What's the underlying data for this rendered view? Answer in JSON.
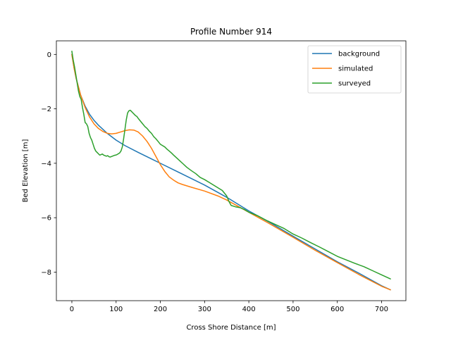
{
  "chart_data": {
    "type": "line",
    "title": "Profile Number 914",
    "xlabel": "Cross Shore Distance [m]",
    "ylabel": "Bed Elevation [m]",
    "xlim": [
      -35,
      755
    ],
    "ylim": [
      -9.05,
      0.5
    ],
    "xticks": [
      0,
      100,
      200,
      300,
      400,
      500,
      600,
      700
    ],
    "yticks": [
      0,
      -2,
      -4,
      -6,
      -8
    ],
    "grid": false,
    "legend_position": "top-right",
    "series": [
      {
        "name": "background",
        "color": "#1f77b4",
        "points": [
          [
            0,
            0
          ],
          [
            5,
            -0.5
          ],
          [
            10,
            -0.9
          ],
          [
            20,
            -1.5
          ],
          [
            30,
            -1.9
          ],
          [
            40,
            -2.2
          ],
          [
            50,
            -2.42
          ],
          [
            60,
            -2.6
          ],
          [
            70,
            -2.75
          ],
          [
            80,
            -2.9
          ],
          [
            100,
            -3.15
          ],
          [
            120,
            -3.35
          ],
          [
            150,
            -3.6
          ],
          [
            180,
            -3.84
          ],
          [
            200,
            -4.0
          ],
          [
            250,
            -4.4
          ],
          [
            300,
            -4.8
          ],
          [
            350,
            -5.25
          ],
          [
            400,
            -5.75
          ],
          [
            450,
            -6.2
          ],
          [
            500,
            -6.68
          ],
          [
            550,
            -7.15
          ],
          [
            600,
            -7.62
          ],
          [
            650,
            -8.05
          ],
          [
            700,
            -8.5
          ],
          [
            720,
            -8.65
          ]
        ]
      },
      {
        "name": "simulated",
        "color": "#ff7f0e",
        "points": [
          [
            0,
            0
          ],
          [
            5,
            -0.5
          ],
          [
            10,
            -0.9
          ],
          [
            20,
            -1.5
          ],
          [
            30,
            -1.95
          ],
          [
            40,
            -2.3
          ],
          [
            50,
            -2.55
          ],
          [
            60,
            -2.72
          ],
          [
            70,
            -2.83
          ],
          [
            80,
            -2.9
          ],
          [
            90,
            -2.92
          ],
          [
            100,
            -2.9
          ],
          [
            110,
            -2.85
          ],
          [
            120,
            -2.8
          ],
          [
            130,
            -2.77
          ],
          [
            140,
            -2.78
          ],
          [
            150,
            -2.85
          ],
          [
            160,
            -3.0
          ],
          [
            170,
            -3.2
          ],
          [
            180,
            -3.45
          ],
          [
            190,
            -3.75
          ],
          [
            200,
            -4.05
          ],
          [
            210,
            -4.3
          ],
          [
            220,
            -4.5
          ],
          [
            230,
            -4.62
          ],
          [
            240,
            -4.72
          ],
          [
            250,
            -4.78
          ],
          [
            270,
            -4.88
          ],
          [
            300,
            -5.02
          ],
          [
            330,
            -5.2
          ],
          [
            350,
            -5.35
          ],
          [
            400,
            -5.8
          ],
          [
            450,
            -6.25
          ],
          [
            500,
            -6.72
          ],
          [
            550,
            -7.2
          ],
          [
            600,
            -7.65
          ],
          [
            650,
            -8.1
          ],
          [
            700,
            -8.52
          ],
          [
            720,
            -8.65
          ]
        ]
      },
      {
        "name": "surveyed",
        "color": "#2ca02c",
        "points": [
          [
            0,
            0.12
          ],
          [
            3,
            -0.2
          ],
          [
            6,
            -0.45
          ],
          [
            9,
            -0.75
          ],
          [
            12,
            -1.05
          ],
          [
            15,
            -1.35
          ],
          [
            18,
            -1.55
          ],
          [
            21,
            -1.65
          ],
          [
            24,
            -1.95
          ],
          [
            27,
            -2.2
          ],
          [
            30,
            -2.5
          ],
          [
            33,
            -2.55
          ],
          [
            36,
            -2.65
          ],
          [
            39,
            -2.9
          ],
          [
            42,
            -3.05
          ],
          [
            45,
            -3.15
          ],
          [
            48,
            -3.3
          ],
          [
            51,
            -3.45
          ],
          [
            54,
            -3.55
          ],
          [
            57,
            -3.6
          ],
          [
            60,
            -3.65
          ],
          [
            63,
            -3.7
          ],
          [
            66,
            -3.68
          ],
          [
            69,
            -3.66
          ],
          [
            72,
            -3.7
          ],
          [
            75,
            -3.72
          ],
          [
            78,
            -3.74
          ],
          [
            81,
            -3.72
          ],
          [
            84,
            -3.76
          ],
          [
            87,
            -3.77
          ],
          [
            90,
            -3.75
          ],
          [
            93,
            -3.73
          ],
          [
            96,
            -3.71
          ],
          [
            99,
            -3.7
          ],
          [
            102,
            -3.68
          ],
          [
            105,
            -3.65
          ],
          [
            108,
            -3.62
          ],
          [
            111,
            -3.55
          ],
          [
            114,
            -3.4
          ],
          [
            117,
            -3.1
          ],
          [
            120,
            -2.75
          ],
          [
            123,
            -2.4
          ],
          [
            126,
            -2.15
          ],
          [
            129,
            -2.07
          ],
          [
            132,
            -2.05
          ],
          [
            135,
            -2.1
          ],
          [
            138,
            -2.15
          ],
          [
            141,
            -2.2
          ],
          [
            144,
            -2.25
          ],
          [
            147,
            -2.28
          ],
          [
            150,
            -2.35
          ],
          [
            155,
            -2.45
          ],
          [
            160,
            -2.55
          ],
          [
            165,
            -2.65
          ],
          [
            170,
            -2.72
          ],
          [
            175,
            -2.82
          ],
          [
            180,
            -2.9
          ],
          [
            185,
            -3.02
          ],
          [
            190,
            -3.1
          ],
          [
            195,
            -3.2
          ],
          [
            200,
            -3.3
          ],
          [
            205,
            -3.35
          ],
          [
            210,
            -3.4
          ],
          [
            215,
            -3.48
          ],
          [
            220,
            -3.55
          ],
          [
            225,
            -3.62
          ],
          [
            230,
            -3.7
          ],
          [
            240,
            -3.85
          ],
          [
            250,
            -4.0
          ],
          [
            260,
            -4.15
          ],
          [
            270,
            -4.27
          ],
          [
            280,
            -4.38
          ],
          [
            290,
            -4.52
          ],
          [
            300,
            -4.6
          ],
          [
            310,
            -4.7
          ],
          [
            320,
            -4.8
          ],
          [
            330,
            -4.9
          ],
          [
            340,
            -5.0
          ],
          [
            345,
            -5.1
          ],
          [
            350,
            -5.2
          ],
          [
            355,
            -5.4
          ],
          [
            360,
            -5.55
          ],
          [
            370,
            -5.6
          ],
          [
            380,
            -5.63
          ],
          [
            390,
            -5.7
          ],
          [
            400,
            -5.8
          ],
          [
            420,
            -5.93
          ],
          [
            440,
            -6.1
          ],
          [
            460,
            -6.25
          ],
          [
            480,
            -6.4
          ],
          [
            500,
            -6.6
          ],
          [
            520,
            -6.75
          ],
          [
            540,
            -6.92
          ],
          [
            560,
            -7.08
          ],
          [
            580,
            -7.25
          ],
          [
            600,
            -7.42
          ],
          [
            620,
            -7.55
          ],
          [
            640,
            -7.68
          ],
          [
            660,
            -7.8
          ],
          [
            680,
            -7.95
          ],
          [
            700,
            -8.1
          ],
          [
            720,
            -8.25
          ]
        ]
      }
    ]
  }
}
